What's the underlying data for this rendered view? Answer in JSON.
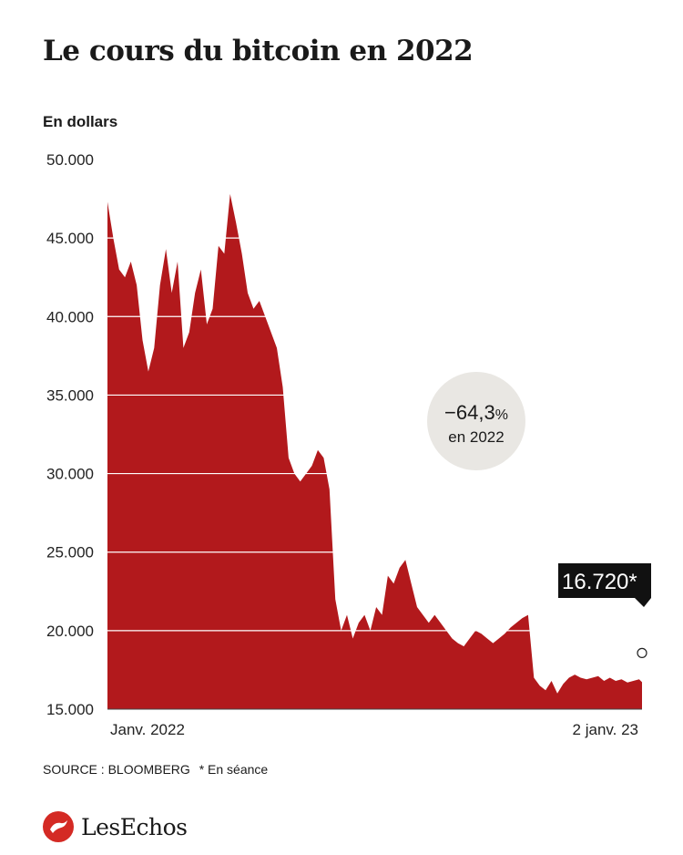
{
  "title": "Le cours du bitcoin en 2022",
  "unit_label": "En dollars",
  "callout": {
    "value": "−64,3",
    "percent_sign": "%",
    "line2": "en 2022"
  },
  "last_value_label": "16.720*",
  "source": "SOURCE : BLOOMBERG",
  "note": "* En séance",
  "brand": {
    "name": "LesEchos"
  },
  "colors": {
    "area": "#b2191c",
    "callout_bg": "#e9e7e3",
    "label_bg": "#111111",
    "brand": "#d42a24"
  },
  "chart_data": {
    "type": "area",
    "title": "Le cours du bitcoin en 2022",
    "ylabel": "En dollars",
    "ylim": [
      15000,
      50000
    ],
    "yticks": [
      15000,
      20000,
      25000,
      30000,
      35000,
      40000,
      45000,
      50000
    ],
    "ytick_labels": [
      "15.000",
      "20.000",
      "25.000",
      "30.000",
      "35.000",
      "40.000",
      "45.000",
      "50.000"
    ],
    "x_range_days": [
      0,
      366
    ],
    "x_tick_labels": [
      {
        "day": 0,
        "label": "Janv. 2022"
      },
      {
        "day": 366,
        "label": "2 janv. 23"
      }
    ],
    "grid": true,
    "series": [
      {
        "x": [
          0,
          4,
          8,
          12,
          16,
          20,
          24,
          28,
          32,
          36,
          40,
          44,
          48,
          52,
          56,
          60,
          64,
          68,
          72,
          76,
          80,
          84,
          88,
          92,
          96,
          100,
          104,
          108,
          112,
          116,
          120,
          124,
          128,
          132,
          136,
          140,
          144,
          148,
          152,
          156,
          160,
          164,
          168,
          172,
          176,
          180,
          184,
          188,
          192,
          196,
          200,
          204,
          208,
          212,
          216,
          220,
          224,
          228,
          232,
          236,
          240,
          244,
          248,
          252,
          256,
          260,
          264,
          268,
          272,
          276,
          280,
          284,
          288,
          292,
          296,
          300,
          304,
          308,
          312,
          316,
          320,
          324,
          328,
          332,
          336,
          340,
          344,
          348,
          352,
          356,
          360,
          364,
          366
        ],
        "y": [
          47300,
          45000,
          43000,
          42500,
          43500,
          42000,
          38500,
          36500,
          38000,
          42000,
          44300,
          41500,
          43500,
          38000,
          39000,
          41500,
          43000,
          39500,
          40500,
          44500,
          44000,
          47800,
          46000,
          44000,
          41500,
          40500,
          41000,
          40000,
          39000,
          38000,
          35500,
          31000,
          30000,
          29500,
          30000,
          30500,
          31500,
          31000,
          29000,
          22000,
          20000,
          21000,
          19500,
          20500,
          21000,
          20000,
          21500,
          21000,
          23500,
          23000,
          24000,
          24500,
          23000,
          21500,
          21000,
          20500,
          21000,
          20500,
          20000,
          19500,
          19200,
          19000,
          19500,
          20000,
          19800,
          19500,
          19200,
          19500,
          19800,
          20200,
          20500,
          20800,
          21000,
          17000,
          16500,
          16200,
          16800,
          16000,
          16600,
          17000,
          17200,
          17000,
          16900,
          17000,
          17100,
          16800,
          17000,
          16800,
          16900,
          16700,
          16800,
          16900,
          16720
        ]
      }
    ],
    "last_point": {
      "day": 366,
      "value": 16720
    }
  }
}
